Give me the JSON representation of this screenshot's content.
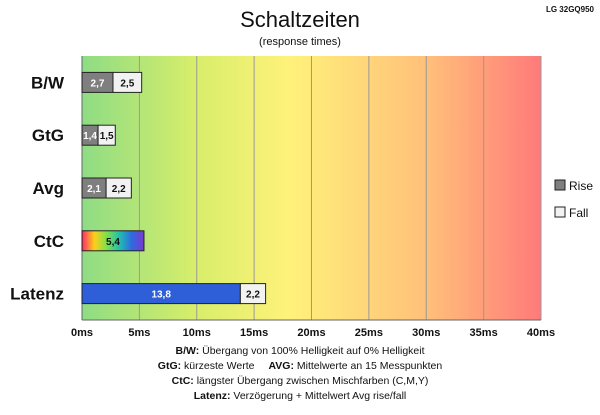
{
  "chart_data": {
    "type": "bar",
    "orientation": "horizontal",
    "stacked": true,
    "title": "Schaltzeiten",
    "subtitle": "(response times)",
    "model": "LG 32GQ950",
    "categories": [
      "B/W",
      "GtG",
      "Avg",
      "CtC",
      "Latenz"
    ],
    "series": [
      {
        "name": "Rise",
        "values": [
          2.7,
          1.4,
          2.1,
          5.4,
          13.8
        ],
        "labels": [
          "2,7",
          "1,4",
          "2,1",
          "5,4",
          "13,8"
        ]
      },
      {
        "name": "Fall",
        "values": [
          2.5,
          1.5,
          2.2,
          null,
          2.2
        ],
        "labels": [
          "2,5",
          "1,5",
          "2,2",
          "",
          "2,2"
        ]
      }
    ],
    "xlim": [
      0,
      40
    ],
    "xticks": [
      0,
      5,
      10,
      15,
      20,
      25,
      30,
      35,
      40
    ],
    "xtick_labels": [
      "0ms",
      "5ms",
      "10ms",
      "15ms",
      "20ms",
      "25ms",
      "30ms",
      "35ms",
      "40ms"
    ],
    "grid": true,
    "legend_position": "right",
    "legend": [
      "Rise",
      "Fall"
    ],
    "colors": {
      "rise": "#7f7f7f",
      "fall": "#f2f2f2",
      "latenz": "#2f5fd8",
      "background_gradient": [
        "#8edc84",
        "#d8ee6a",
        "#fff27a",
        "#ffc07a",
        "#ff7a7a"
      ]
    },
    "footnotes": [
      {
        "key": "B/W:",
        "text": " Übergang von 100% Helligkeit auf 0% Helligkeit"
      },
      {
        "key": "GtG:",
        "text": " kürzeste Werte",
        "key2": "AVG:",
        "text2": " Mittelwerte an 15 Messpunkten"
      },
      {
        "key": "CtC:",
        "text": " längster Übergang zwischen Mischfarben (C,M,Y)"
      },
      {
        "key": "Latenz:",
        "text": " Verzögerung + Mittelwert Avg rise/fall"
      }
    ]
  }
}
